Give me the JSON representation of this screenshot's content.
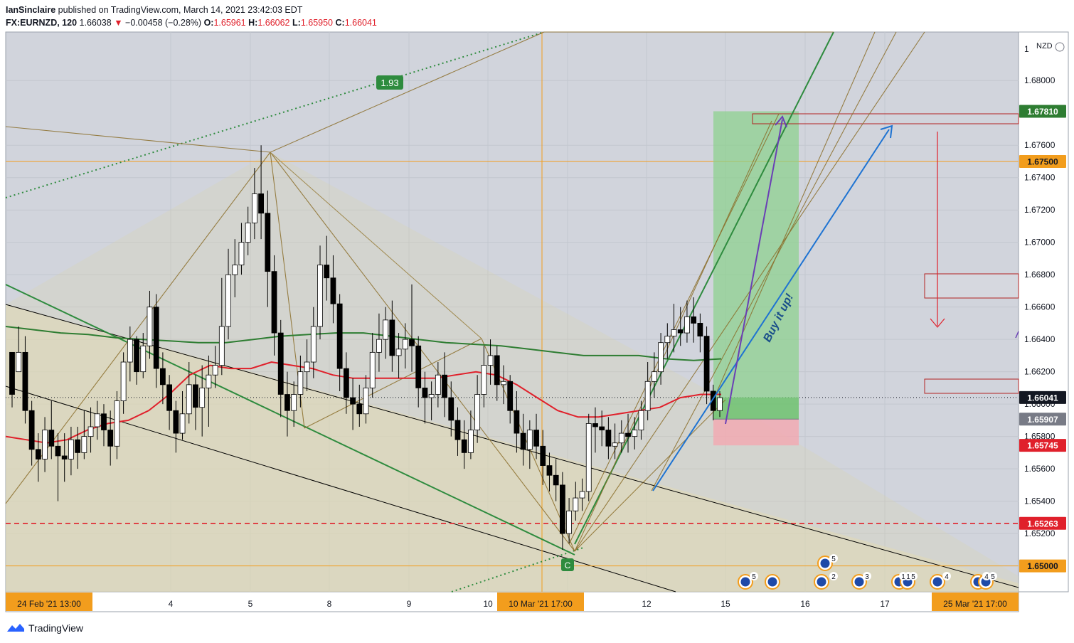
{
  "header": {
    "author": "IanSinclaire",
    "published_text": "published on TradingView.com, March 14, 2021 23:42:03 EDT",
    "symbol": "FX:EURNZD, 120",
    "last": "1.66038",
    "change_arrow": "▼",
    "change": "−0.00458 (−0.28%)",
    "o_label": "O:",
    "o_value": "1.65961",
    "h_label": "H:",
    "h_value": "1.66062",
    "l_label": "L:",
    "l_value": "1.65950",
    "c_label": "C:",
    "c_value": "1.66041"
  },
  "footer": {
    "brand": "TradingView"
  },
  "chart_data": {
    "type": "candlestick",
    "currency_label": "NZD",
    "y_axis": {
      "range": [
        1.6484,
        1.683
      ],
      "ticks": [
        "1.68000",
        "1.67600",
        "1.67400",
        "1.67200",
        "1.67000",
        "1.66800",
        "1.66600",
        "1.66400",
        "1.66200",
        "1.66000",
        "1.65800",
        "1.65600",
        "1.65400",
        "1.65200"
      ],
      "tick_values": [
        1.68,
        1.676,
        1.674,
        1.672,
        1.67,
        1.668,
        1.666,
        1.664,
        1.662,
        1.66,
        1.658,
        1.656,
        1.654,
        1.652
      ]
    },
    "price_labels": [
      {
        "text": "1.67810",
        "value": 1.6781,
        "color": "#2e7d32"
      },
      {
        "text": "1.67500",
        "value": 1.675,
        "color": "#f29d1d"
      },
      {
        "text": "1.66041",
        "value": 1.66041,
        "color": "#131722"
      },
      {
        "text": "1.65907",
        "value": 1.65907,
        "color": "#787b86"
      },
      {
        "text": "1.65745",
        "value": 1.65745,
        "color": "#e0202b"
      },
      {
        "text": "1.65263",
        "value": 1.65263,
        "color": "#e0202b"
      },
      {
        "text": "1.65000",
        "value": 1.65,
        "color": "#f29d1d"
      }
    ],
    "x_axis": {
      "ticks": [
        "4",
        "5",
        "8",
        "9",
        "10",
        "12",
        "15",
        "16",
        "17"
      ],
      "highlighted_labels": [
        "24 Feb '21   13:00",
        "10 Mar '21   17:00",
        "25 Mar '21   17:00"
      ]
    },
    "annotations": {
      "ratio_badge": "1.93",
      "point_label": "C",
      "text_note": "Buy it up!",
      "event_counts": [
        "5",
        "5",
        "5",
        "2",
        "3",
        "1",
        "1",
        "5",
        "4",
        "4",
        "5"
      ]
    },
    "levels": {
      "horizontal_orange": [
        1.675,
        1.65
      ],
      "horizontal_red_dashed": 1.65263,
      "last_price": 1.66041,
      "position_target": 1.6781,
      "position_entry": 1.65907,
      "position_stop": 1.65745
    },
    "candles": [
      [
        1.6632,
        1.6622,
        1.6606,
        1.6598
      ],
      [
        1.662,
        1.6648,
        1.6632,
        1.6626
      ],
      [
        1.6632,
        1.6642,
        1.6596,
        1.6588
      ],
      [
        1.6596,
        1.6602,
        1.6572,
        1.6562
      ],
      [
        1.6572,
        1.6582,
        1.6566,
        1.6552
      ],
      [
        1.6566,
        1.6592,
        1.6584,
        1.6558
      ],
      [
        1.6584,
        1.6602,
        1.6574,
        1.6566
      ],
      [
        1.6574,
        1.6582,
        1.6568,
        1.654
      ],
      [
        1.6568,
        1.6582,
        1.6566,
        1.6552
      ],
      [
        1.6566,
        1.6586,
        1.6578,
        1.6556
      ],
      [
        1.6578,
        1.6586,
        1.657,
        1.656
      ],
      [
        1.657,
        1.6596,
        1.658,
        1.6566
      ],
      [
        1.658,
        1.6598,
        1.6586,
        1.657
      ],
      [
        1.6586,
        1.6602,
        1.6594,
        1.6578
      ],
      [
        1.6594,
        1.66,
        1.6584,
        1.6574
      ],
      [
        1.6584,
        1.6596,
        1.6574,
        1.6562
      ],
      [
        1.6574,
        1.6608,
        1.6602,
        1.6566
      ],
      [
        1.6602,
        1.6632,
        1.6626,
        1.6594
      ],
      [
        1.6626,
        1.6648,
        1.664,
        1.6614
      ],
      [
        1.664,
        1.6642,
        1.662,
        1.6612
      ],
      [
        1.662,
        1.6644,
        1.6636,
        1.6616
      ],
      [
        1.6636,
        1.667,
        1.666,
        1.6628
      ],
      [
        1.666,
        1.6668,
        1.6622,
        1.661
      ],
      [
        1.6622,
        1.6632,
        1.6612,
        1.66
      ],
      [
        1.6612,
        1.6618,
        1.6596,
        1.6584
      ],
      [
        1.6596,
        1.6602,
        1.6582,
        1.657
      ],
      [
        1.6582,
        1.6608,
        1.6594,
        1.6578
      ],
      [
        1.6594,
        1.6626,
        1.6612,
        1.6588
      ],
      [
        1.6612,
        1.6618,
        1.6598,
        1.6584
      ],
      [
        1.6598,
        1.6624,
        1.661,
        1.658
      ],
      [
        1.661,
        1.663,
        1.6618,
        1.6586
      ],
      [
        1.6618,
        1.6636,
        1.6624,
        1.661
      ],
      [
        1.6624,
        1.6678,
        1.6648,
        1.6618
      ],
      [
        1.6648,
        1.6696,
        1.668,
        1.664
      ],
      [
        1.668,
        1.6702,
        1.6686,
        1.6666
      ],
      [
        1.6686,
        1.6712,
        1.67,
        1.668
      ],
      [
        1.67,
        1.6722,
        1.6712,
        1.6692
      ],
      [
        1.6712,
        1.6746,
        1.673,
        1.6702
      ],
      [
        1.673,
        1.676,
        1.6718,
        1.6702
      ],
      [
        1.6718,
        1.6732,
        1.6682,
        1.666
      ],
      [
        1.6682,
        1.6692,
        1.6644,
        1.663
      ],
      [
        1.6644,
        1.6652,
        1.6606,
        1.6592
      ],
      [
        1.6606,
        1.662,
        1.6596,
        1.658
      ],
      [
        1.6596,
        1.6614,
        1.6606,
        1.6586
      ],
      [
        1.6606,
        1.663,
        1.662,
        1.6598
      ],
      [
        1.662,
        1.664,
        1.6626,
        1.6608
      ],
      [
        1.6626,
        1.666,
        1.6648,
        1.6616
      ],
      [
        1.6648,
        1.6698,
        1.6686,
        1.664
      ],
      [
        1.6686,
        1.6704,
        1.6678,
        1.6664
      ],
      [
        1.6678,
        1.6692,
        1.6662,
        1.665
      ],
      [
        1.6662,
        1.6668,
        1.6622,
        1.6608
      ],
      [
        1.6622,
        1.6632,
        1.6604,
        1.6594
      ],
      [
        1.6604,
        1.6616,
        1.66,
        1.6584
      ],
      [
        1.66,
        1.6612,
        1.6594,
        1.6586
      ],
      [
        1.6594,
        1.6618,
        1.661,
        1.6588
      ],
      [
        1.661,
        1.6644,
        1.6632,
        1.6604
      ],
      [
        1.6632,
        1.6656,
        1.664,
        1.662
      ],
      [
        1.664,
        1.666,
        1.6652,
        1.6628
      ],
      [
        1.6652,
        1.6664,
        1.663,
        1.662
      ],
      [
        1.663,
        1.6644,
        1.6634,
        1.6616
      ],
      [
        1.6634,
        1.665,
        1.664,
        1.6622
      ],
      [
        1.664,
        1.6674,
        1.6636,
        1.662
      ],
      [
        1.6636,
        1.6642,
        1.661,
        1.6598
      ],
      [
        1.661,
        1.662,
        1.6604,
        1.6588
      ],
      [
        1.6604,
        1.6614,
        1.6606,
        1.659
      ],
      [
        1.6606,
        1.6626,
        1.6618,
        1.6598
      ],
      [
        1.6618,
        1.6632,
        1.6604,
        1.6592
      ],
      [
        1.6604,
        1.6614,
        1.659,
        1.658
      ],
      [
        1.659,
        1.6598,
        1.6578,
        1.6568
      ],
      [
        1.6578,
        1.659,
        1.657,
        1.656
      ],
      [
        1.657,
        1.6596,
        1.6584,
        1.6566
      ],
      [
        1.6584,
        1.6618,
        1.6606,
        1.6576
      ],
      [
        1.6606,
        1.6636,
        1.6624,
        1.6598
      ],
      [
        1.6624,
        1.664,
        1.663,
        1.6612
      ],
      [
        1.663,
        1.6636,
        1.6612,
        1.6602
      ],
      [
        1.6612,
        1.6624,
        1.6614,
        1.66
      ],
      [
        1.6614,
        1.6618,
        1.6596,
        1.6588
      ],
      [
        1.6596,
        1.6608,
        1.6582,
        1.657
      ],
      [
        1.6582,
        1.6594,
        1.6572,
        1.6562
      ],
      [
        1.6572,
        1.659,
        1.6584,
        1.656
      ],
      [
        1.6584,
        1.6594,
        1.6574,
        1.6566
      ],
      [
        1.6574,
        1.6584,
        1.6562,
        1.655
      ],
      [
        1.6562,
        1.657,
        1.6556,
        1.6546
      ],
      [
        1.6556,
        1.6566,
        1.655,
        1.654
      ],
      [
        1.655,
        1.6558,
        1.652,
        1.651
      ],
      [
        1.652,
        1.6542,
        1.6534,
        1.6514
      ],
      [
        1.6534,
        1.6552,
        1.6542,
        1.6528
      ],
      [
        1.6542,
        1.6554,
        1.6546,
        1.6534
      ],
      [
        1.6546,
        1.6594,
        1.6588,
        1.654
      ],
      [
        1.6588,
        1.6598,
        1.6586,
        1.657
      ],
      [
        1.6586,
        1.6596,
        1.6584,
        1.6574
      ],
      [
        1.6584,
        1.6592,
        1.6574,
        1.6566
      ],
      [
        1.6574,
        1.6588,
        1.6576,
        1.6566
      ],
      [
        1.6576,
        1.659,
        1.6582,
        1.657
      ],
      [
        1.6582,
        1.6594,
        1.658,
        1.657
      ],
      [
        1.658,
        1.6592,
        1.6584,
        1.6572
      ],
      [
        1.6584,
        1.6602,
        1.6596,
        1.6578
      ],
      [
        1.6596,
        1.6626,
        1.6614,
        1.659
      ],
      [
        1.6614,
        1.6632,
        1.662,
        1.6604
      ],
      [
        1.662,
        1.6644,
        1.6638,
        1.6612
      ],
      [
        1.6638,
        1.665,
        1.6642,
        1.6628
      ],
      [
        1.6642,
        1.6662,
        1.6646,
        1.6632
      ],
      [
        1.6646,
        1.666,
        1.6644,
        1.6636
      ],
      [
        1.6644,
        1.6664,
        1.6654,
        1.6638
      ],
      [
        1.6654,
        1.6666,
        1.665,
        1.6638
      ],
      [
        1.665,
        1.6656,
        1.6642,
        1.6632
      ],
      [
        1.6642,
        1.6648,
        1.6608,
        1.66
      ],
      [
        1.6608,
        1.6612,
        1.6596,
        1.659
      ],
      [
        1.6596,
        1.6608,
        1.6604,
        1.6592
      ]
    ],
    "ma_green": [
      1.6648,
      1.6646,
      1.6644,
      1.6643,
      1.6641,
      1.664,
      1.6639,
      1.6638,
      1.6638,
      1.664,
      1.6642,
      1.6643,
      1.6644,
      1.6644,
      1.6642,
      1.664,
      1.6638,
      1.6637,
      1.6636,
      1.6634,
      1.6632,
      1.663,
      1.663,
      1.663,
      1.6628,
      1.6627,
      1.6628
    ],
    "ma_red": [
      1.658,
      1.6578,
      1.6576,
      1.6578,
      1.6584,
      1.6588,
      1.659,
      1.6596,
      1.6606,
      1.6618,
      1.6624,
      1.6622,
      1.6622,
      1.6626,
      1.6624,
      1.6622,
      1.6618,
      1.6616,
      1.6616,
      1.6616,
      1.6616,
      1.6616,
      1.6618,
      1.662,
      1.6618,
      1.6612,
      1.6604,
      1.6596,
      1.6592,
      1.6592,
      1.6594,
      1.6596,
      1.6598,
      1.6604,
      1.6606,
      1.6606
    ],
    "colors": {
      "background": "#d1d4dc",
      "up_candle": "#ffffff",
      "down_candle": "#000000",
      "ma_green": "#2e7d32",
      "ma_red": "#e0202b",
      "pattern_lines": "#8b6e2a",
      "trend_green": "#2e8b3e",
      "arrow_blue": "#1e73d2",
      "arrow_purple": "#6a3fb5",
      "target_zone": "#8ad18a",
      "stop_zone": "#f4a7b0",
      "level_orange": "#f29d1d"
    }
  }
}
